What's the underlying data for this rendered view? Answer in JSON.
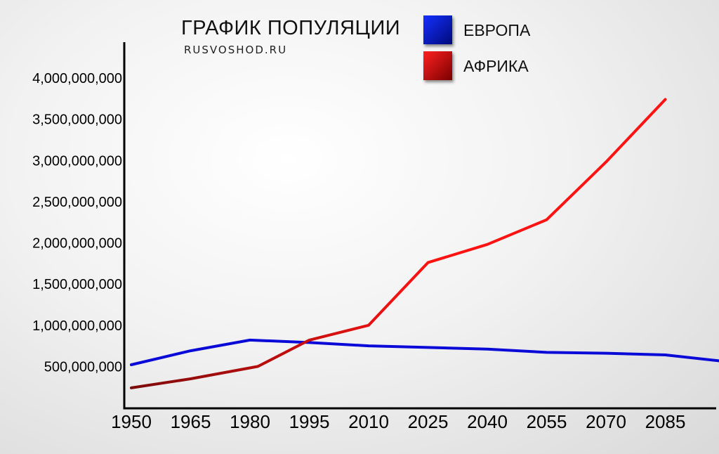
{
  "chart_data": {
    "type": "line",
    "title": "ГРАФИК ПОПУЛЯЦИИ",
    "subtitle": "RUSVOSHOD.RU",
    "x_ticks": [
      "1950",
      "1965",
      "1980",
      "1995",
      "2010",
      "2025",
      "2040",
      "2055",
      "2070",
      "2085"
    ],
    "y_ticks": [
      {
        "value": 500000000,
        "label": "500,000,000"
      },
      {
        "value": 1000000000,
        "label": "1,000,000,000"
      },
      {
        "value": 1500000000,
        "label": "1,500,000,000"
      },
      {
        "value": 2000000000,
        "label": "2,000,000,000"
      },
      {
        "value": 2500000000,
        "label": "2,500,000,000"
      },
      {
        "value": 3000000000,
        "label": "3,000,000,000"
      },
      {
        "value": 3500000000,
        "label": "3,500,000,000"
      },
      {
        "value": 4000000000,
        "label": "4,000,000,000"
      }
    ],
    "xlim": [
      1948,
      2100
    ],
    "ylim": [
      0,
      4150000000
    ],
    "legend_position": "top-center",
    "series": [
      {
        "name": "ЕВРОПА",
        "color": "#0a0ad8",
        "swatch_colors": [
          "#1430ff",
          "#000a7a"
        ],
        "x": [
          1950,
          1965,
          1980,
          1995,
          2010,
          2025,
          2040,
          2055,
          2070,
          2085,
          2100
        ],
        "y": [
          520000000,
          690000000,
          820000000,
          790000000,
          750000000,
          730000000,
          710000000,
          670000000,
          660000000,
          640000000,
          560000000
        ]
      },
      {
        "name": "АФРИКА",
        "colors": [
          "#7a0a0a",
          "#ff1212"
        ],
        "swatch_colors": [
          "#ff2020",
          "#7a0000"
        ],
        "x": [
          1950,
          1965,
          1982,
          1995,
          2010,
          2025,
          2040,
          2055,
          2070,
          2085
        ],
        "y": [
          240000000,
          350000000,
          500000000,
          820000000,
          1000000000,
          1760000000,
          1980000000,
          2280000000,
          2980000000,
          3740000000
        ]
      }
    ]
  }
}
